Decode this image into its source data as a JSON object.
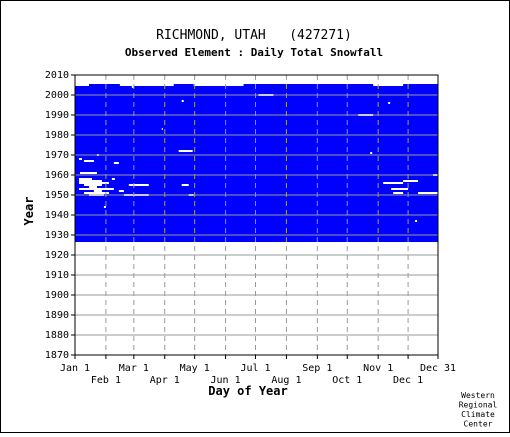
{
  "chart_data": {
    "type": "heatmap",
    "title": "RICHMOND, UTAH   (427271)",
    "subtitle": "Observed Element : Daily Total Snowfall",
    "xlabel": "Day of Year",
    "ylabel": "Year",
    "xlim": [
      1,
      365
    ],
    "ylim": [
      1870,
      2010
    ],
    "x_ticks_upper": [
      {
        "label": "Jan 1",
        "day": 1
      },
      {
        "label": "Mar 1",
        "day": 60
      },
      {
        "label": "May 1",
        "day": 121
      },
      {
        "label": "Jul 1",
        "day": 182
      },
      {
        "label": "Sep 1",
        "day": 244
      },
      {
        "label": "Nov 1",
        "day": 305
      },
      {
        "label": "Dec 31",
        "day": 365
      }
    ],
    "x_ticks_lower": [
      {
        "label": "Feb 1",
        "day": 32
      },
      {
        "label": "Apr 1",
        "day": 91
      },
      {
        "label": "Jun 1",
        "day": 152
      },
      {
        "label": "Aug 1",
        "day": 213
      },
      {
        "label": "Oct 1",
        "day": 274
      },
      {
        "label": "Dec 1",
        "day": 335
      }
    ],
    "y_ticks": [
      1870,
      1880,
      1890,
      1900,
      1910,
      1920,
      1930,
      1940,
      1950,
      1960,
      1970,
      1980,
      1990,
      2000,
      2010
    ],
    "grid": true,
    "observed_period": {
      "start_year": 1927,
      "end_year": 2005
    },
    "observed_color": "#0000ff",
    "missing_color": "#ffffff",
    "missing_segments": [
      {
        "year": 2005,
        "start_day": 1,
        "end_day": 15
      },
      {
        "year": 2005,
        "start_day": 46,
        "end_day": 100
      },
      {
        "year": 2005,
        "start_day": 120,
        "end_day": 170
      },
      {
        "year": 2005,
        "start_day": 300,
        "end_day": 330
      },
      {
        "year": 2004,
        "start_day": 58,
        "end_day": 60
      },
      {
        "year": 2000,
        "start_day": 185,
        "end_day": 200
      },
      {
        "year": 1997,
        "start_day": 108,
        "end_day": 110
      },
      {
        "year": 1996,
        "start_day": 315,
        "end_day": 317
      },
      {
        "year": 1990,
        "start_day": 285,
        "end_day": 300
      },
      {
        "year": 1983,
        "start_day": 88,
        "end_day": 89
      },
      {
        "year": 1972,
        "start_day": 105,
        "end_day": 119
      },
      {
        "year": 1971,
        "start_day": 297,
        "end_day": 299
      },
      {
        "year": 1970,
        "start_day": 23,
        "end_day": 25
      },
      {
        "year": 1968,
        "start_day": 5,
        "end_day": 8
      },
      {
        "year": 1967,
        "start_day": 10,
        "end_day": 20
      },
      {
        "year": 1966,
        "start_day": 40,
        "end_day": 45
      },
      {
        "year": 1961,
        "start_day": 6,
        "end_day": 23
      },
      {
        "year": 1960,
        "start_day": 360,
        "end_day": 365
      },
      {
        "year": 1958,
        "start_day": 5,
        "end_day": 18
      },
      {
        "year": 1958,
        "start_day": 38,
        "end_day": 41
      },
      {
        "year": 1957,
        "start_day": 5,
        "end_day": 28
      },
      {
        "year": 1957,
        "start_day": 330,
        "end_day": 345
      },
      {
        "year": 1956,
        "start_day": 5,
        "end_day": 35
      },
      {
        "year": 1956,
        "start_day": 310,
        "end_day": 330
      },
      {
        "year": 1955,
        "start_day": 10,
        "end_day": 28
      },
      {
        "year": 1955,
        "start_day": 55,
        "end_day": 75
      },
      {
        "year": 1955,
        "start_day": 108,
        "end_day": 115
      },
      {
        "year": 1954,
        "start_day": 15,
        "end_day": 23
      },
      {
        "year": 1953,
        "start_day": 5,
        "end_day": 40
      },
      {
        "year": 1953,
        "start_day": 318,
        "end_day": 335
      },
      {
        "year": 1952,
        "start_day": 20,
        "end_day": 28
      },
      {
        "year": 1952,
        "start_day": 45,
        "end_day": 50
      },
      {
        "year": 1951,
        "start_day": 10,
        "end_day": 35
      },
      {
        "year": 1951,
        "start_day": 320,
        "end_day": 330
      },
      {
        "year": 1951,
        "start_day": 345,
        "end_day": 365
      },
      {
        "year": 1950,
        "start_day": 15,
        "end_day": 30
      },
      {
        "year": 1950,
        "start_day": 50,
        "end_day": 75
      },
      {
        "year": 1950,
        "start_day": 115,
        "end_day": 120
      },
      {
        "year": 1944,
        "start_day": 30,
        "end_day": 32
      },
      {
        "year": 1937,
        "start_day": 342,
        "end_day": 344
      }
    ]
  },
  "footer": {
    "credit_lines": [
      "Western",
      "Regional",
      "Climate",
      "Center"
    ]
  }
}
